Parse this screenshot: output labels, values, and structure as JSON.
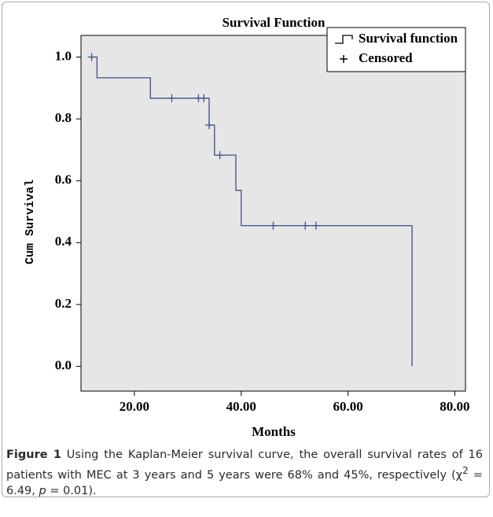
{
  "chart_data": {
    "type": "step",
    "title": "Survival Function",
    "xlabel": "Months",
    "ylabel": "Cum Survival",
    "xlim": [
      10,
      82
    ],
    "ylim": [
      -0.08,
      1.07
    ],
    "xticks": [
      {
        "value": 20,
        "label": "20.00"
      },
      {
        "value": 40,
        "label": "40.00"
      },
      {
        "value": 60,
        "label": "60.00"
      },
      {
        "value": 80,
        "label": "80.00"
      }
    ],
    "yticks": [
      {
        "value": 0,
        "label": "0.0"
      },
      0.2,
      0.4,
      0.6,
      0.8,
      {
        "value": 1,
        "label": "1.0"
      }
    ],
    "legend": "upper right",
    "background": "#e6e6e6",
    "series": [
      {
        "name": "Survival function",
        "type": "step",
        "color": "#3b4f8c",
        "x": [
          12,
          13,
          23,
          34,
          35,
          39,
          40,
          72,
          72
        ],
        "values": [
          1.0,
          0.933,
          0.867,
          0.78,
          0.683,
          0.569,
          0.455,
          0.455,
          0
        ]
      },
      {
        "name": "Censored",
        "type": "scatter",
        "color": "#3b4f8c",
        "x": [
          12,
          27,
          32,
          33,
          34,
          36,
          46,
          52,
          54
        ],
        "values": [
          1.0,
          0.867,
          0.867,
          0.867,
          0.78,
          0.683,
          0.455,
          0.455,
          0.455
        ]
      }
    ]
  },
  "caption": {
    "label": "Figure 1",
    "text": " Using the Kaplan-Meier survival curve, the overall survival rates of 16 patients with MEC at 3 years and 5 years were 68% and 45%, respectively (χ",
    "sup": "2",
    "text2": " = 6.49, ",
    "italic": "p",
    "text3": " = 0.01)."
  }
}
